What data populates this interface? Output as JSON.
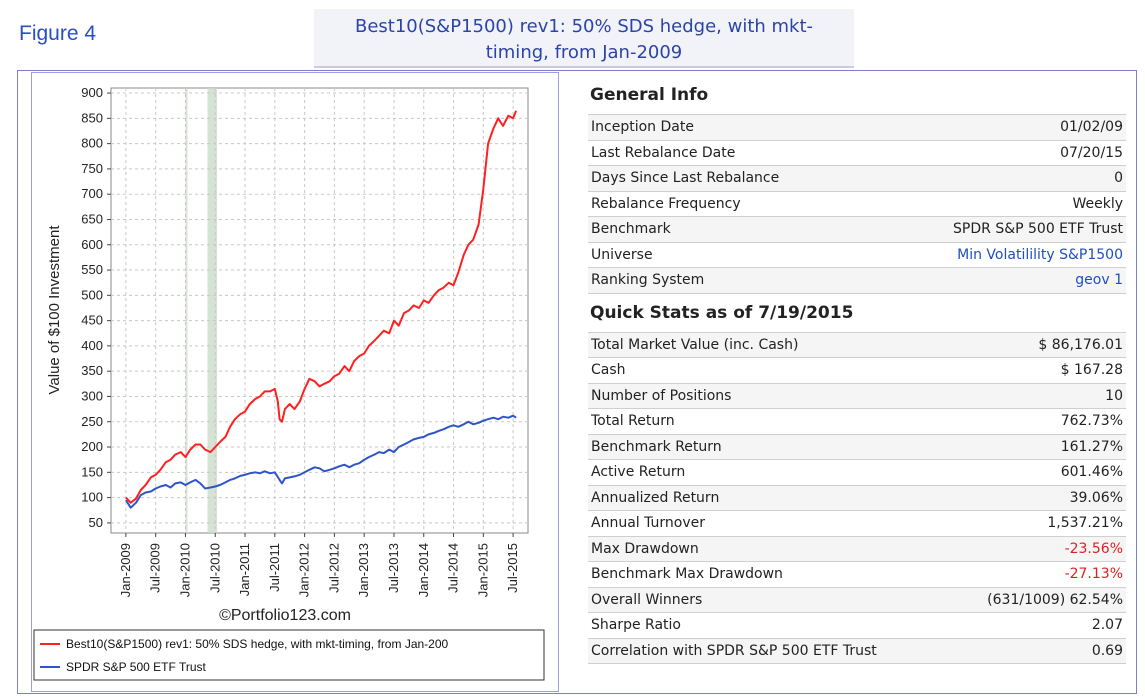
{
  "figure_label": "Figure 4",
  "title_line1": "Best10(S&P1500) rev1: 50% SDS hedge, with mkt-",
  "title_line2": "timing, from Jan-2009",
  "copyright": "©Portfolio123.com",
  "chart_data": {
    "type": "line",
    "ylabel": "Value of $100 Investment",
    "ylim": [
      30,
      910
    ],
    "yticks": [
      50,
      100,
      150,
      200,
      250,
      300,
      350,
      400,
      450,
      500,
      550,
      600,
      650,
      700,
      750,
      800,
      850,
      900
    ],
    "xlim": [
      2008.75,
      2015.75
    ],
    "x_tick_labels": [
      "Jan-2009",
      "Jul-2009",
      "Jan-2010",
      "Jul-2010",
      "Jan-2011",
      "Jul-2011",
      "Jan-2012",
      "Jul-2012",
      "Jan-2013",
      "Jul-2013",
      "Jan-2014",
      "Jul-2014",
      "Jan-2015",
      "Jul-2015"
    ],
    "x_tick_values": [
      2009.0,
      2009.5,
      2010.0,
      2010.5,
      2011.0,
      2011.5,
      2012.0,
      2012.5,
      2013.0,
      2013.5,
      2014.0,
      2014.5,
      2015.0,
      2015.5
    ],
    "shaded_periods": [
      [
        2010.0,
        2010.02
      ],
      [
        2010.37,
        2010.53
      ]
    ],
    "series": [
      {
        "name": "Best10(S&P1500) rev1:  50% SDS hedge, with mkt-timing, from Jan-200",
        "color": "#ff2020",
        "x": [
          2009.0,
          2009.08,
          2009.17,
          2009.25,
          2009.33,
          2009.42,
          2009.5,
          2009.58,
          2009.67,
          2009.75,
          2009.83,
          2009.92,
          2010.0,
          2010.08,
          2010.17,
          2010.25,
          2010.33,
          2010.42,
          2010.5,
          2010.58,
          2010.67,
          2010.75,
          2010.83,
          2010.92,
          2011.0,
          2011.08,
          2011.17,
          2011.25,
          2011.33,
          2011.42,
          2011.5,
          2011.55,
          2011.58,
          2011.62,
          2011.67,
          2011.75,
          2011.83,
          2011.92,
          2012.0,
          2012.08,
          2012.17,
          2012.25,
          2012.33,
          2012.42,
          2012.5,
          2012.58,
          2012.67,
          2012.75,
          2012.83,
          2012.92,
          2013.0,
          2013.08,
          2013.17,
          2013.25,
          2013.33,
          2013.42,
          2013.5,
          2013.58,
          2013.67,
          2013.75,
          2013.83,
          2013.92,
          2014.0,
          2014.08,
          2014.17,
          2014.25,
          2014.33,
          2014.42,
          2014.5,
          2014.58,
          2014.67,
          2014.75,
          2014.83,
          2014.92,
          2015.0,
          2015.08,
          2015.17,
          2015.25,
          2015.33,
          2015.42,
          2015.5,
          2015.55
        ],
        "y": [
          100,
          90,
          98,
          115,
          125,
          140,
          145,
          155,
          170,
          175,
          185,
          190,
          180,
          195,
          205,
          205,
          195,
          190,
          200,
          210,
          220,
          240,
          255,
          265,
          270,
          285,
          295,
          300,
          310,
          310,
          315,
          290,
          255,
          250,
          275,
          285,
          275,
          290,
          315,
          335,
          330,
          320,
          325,
          330,
          340,
          345,
          360,
          350,
          370,
          380,
          385,
          400,
          410,
          420,
          430,
          425,
          450,
          440,
          465,
          470,
          480,
          475,
          490,
          485,
          500,
          510,
          515,
          525,
          520,
          545,
          580,
          600,
          610,
          640,
          710,
          800,
          830,
          850,
          835,
          855,
          850,
          865
        ]
      },
      {
        "name": "SPDR S&P 500 ETF Trust",
        "color": "#2e55c8",
        "x": [
          2009.0,
          2009.08,
          2009.17,
          2009.25,
          2009.33,
          2009.42,
          2009.5,
          2009.58,
          2009.67,
          2009.75,
          2009.83,
          2009.92,
          2010.0,
          2010.08,
          2010.17,
          2010.25,
          2010.33,
          2010.42,
          2010.5,
          2010.58,
          2010.67,
          2010.75,
          2010.83,
          2010.92,
          2011.0,
          2011.08,
          2011.17,
          2011.25,
          2011.33,
          2011.42,
          2011.5,
          2011.58,
          2011.62,
          2011.67,
          2011.75,
          2011.83,
          2011.92,
          2012.0,
          2012.08,
          2012.17,
          2012.25,
          2012.33,
          2012.42,
          2012.5,
          2012.58,
          2012.67,
          2012.75,
          2012.83,
          2012.92,
          2013.0,
          2013.08,
          2013.17,
          2013.25,
          2013.33,
          2013.42,
          2013.5,
          2013.58,
          2013.67,
          2013.75,
          2013.83,
          2013.92,
          2014.0,
          2014.08,
          2014.17,
          2014.25,
          2014.33,
          2014.42,
          2014.5,
          2014.58,
          2014.67,
          2014.75,
          2014.83,
          2014.92,
          2015.0,
          2015.08,
          2015.17,
          2015.25,
          2015.33,
          2015.42,
          2015.5,
          2015.55
        ],
        "y": [
          95,
          80,
          90,
          105,
          110,
          112,
          118,
          122,
          125,
          120,
          128,
          130,
          125,
          130,
          135,
          128,
          118,
          120,
          122,
          125,
          130,
          135,
          138,
          143,
          145,
          148,
          150,
          148,
          152,
          148,
          150,
          135,
          128,
          138,
          140,
          142,
          145,
          150,
          155,
          160,
          158,
          152,
          155,
          158,
          162,
          165,
          160,
          165,
          168,
          175,
          180,
          185,
          190,
          188,
          195,
          190,
          200,
          205,
          210,
          215,
          218,
          220,
          225,
          228,
          232,
          235,
          240,
          243,
          240,
          245,
          250,
          245,
          248,
          252,
          255,
          258,
          255,
          260,
          258,
          262,
          258
        ]
      }
    ]
  },
  "general_info": {
    "title": "General Info",
    "rows": [
      {
        "label": "Inception Date",
        "value": "01/02/09"
      },
      {
        "label": "Last Rebalance Date",
        "value": "07/20/15"
      },
      {
        "label": "Days Since Last Rebalance",
        "value": "0"
      },
      {
        "label": "Rebalance Frequency",
        "value": "Weekly"
      },
      {
        "label": "Benchmark",
        "value": "SPDR S&P 500 ETF Trust"
      },
      {
        "label": "Universe",
        "value": "Min Volatilility S&P1500"
      },
      {
        "label": "Ranking System",
        "value": "geov 1"
      }
    ]
  },
  "quick_stats": {
    "title": "Quick Stats as of 7/19/2015",
    "rows": [
      {
        "label": "Total Market Value (inc. Cash)",
        "value": "$ 86,176.01"
      },
      {
        "label": "Cash",
        "value": "$ 167.28"
      },
      {
        "label": "Number of Positions",
        "value": "10"
      },
      {
        "label": "Total Return",
        "value": "762.73%"
      },
      {
        "label": "Benchmark Return",
        "value": "161.27%"
      },
      {
        "label": "Active Return",
        "value": "601.46%"
      },
      {
        "label": "Annualized Return",
        "value": "39.06%"
      },
      {
        "label": "Annual Turnover",
        "value": "1,537.21%"
      },
      {
        "label": "Max Drawdown",
        "value": "-23.56%"
      },
      {
        "label": "Benchmark Max Drawdown",
        "value": "-27.13%"
      },
      {
        "label": "Overall Winners",
        "value": "(631/1009) 62.54%"
      },
      {
        "label": "Sharpe Ratio",
        "value": "2.07"
      },
      {
        "label": "Correlation with SPDR S&P 500 ETF Trust",
        "value": "0.69"
      }
    ]
  }
}
